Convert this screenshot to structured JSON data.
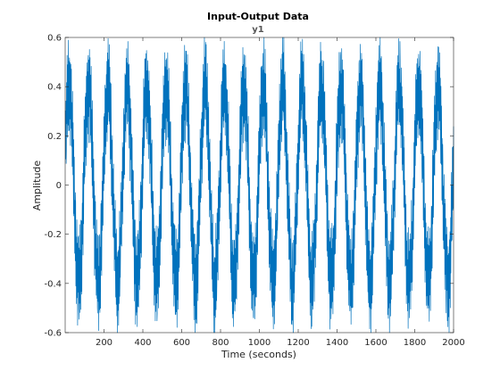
{
  "chart_data": {
    "type": "line",
    "title": "Input-Output Data",
    "subtitle": "y1",
    "xlabel": "Time (seconds)",
    "ylabel": "Amplitude",
    "xlim": [
      0,
      2000
    ],
    "ylim": [
      -0.6,
      0.6
    ],
    "x_ticks": [
      200,
      400,
      600,
      800,
      1000,
      1200,
      1400,
      1600,
      1800,
      2000
    ],
    "x_tick_labels": [
      "200",
      "400",
      "600",
      "800",
      "1000",
      "1200",
      "1400",
      "1600",
      "1800",
      "2000"
    ],
    "y_ticks": [
      -0.6,
      -0.4,
      -0.2,
      0,
      0.2,
      0.4,
      0.6
    ],
    "y_tick_labels": [
      "-0.6",
      "-0.4",
      "-0.2",
      "0",
      "0.2",
      "0.4",
      "0.6"
    ],
    "grid": false,
    "series": [
      {
        "color": "#0072BD",
        "sample_count": 2000,
        "sample_interval": 1,
        "dominant_period": 100,
        "amplitude_range": [
          -0.6,
          0.6
        ],
        "description": "dense oscillating signal: slow sinusoid (period about 100 s, amplitude about 0.4) plus fast high-frequency oscillation (amplitude about 0.2)"
      }
    ]
  }
}
